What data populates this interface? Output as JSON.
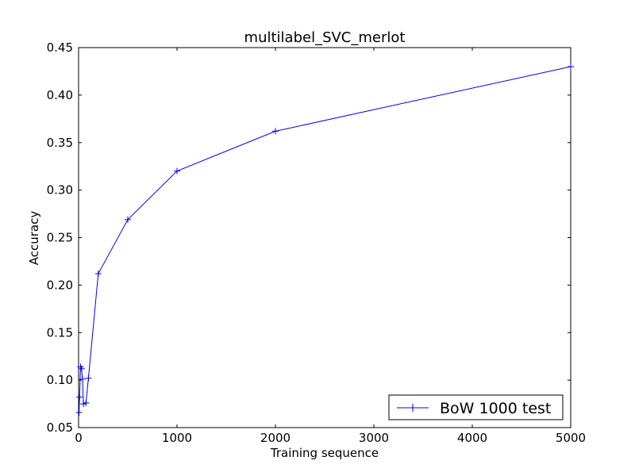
{
  "chart_data": {
    "type": "line",
    "title": "multilabel_SVC_merlot",
    "xlabel": "Training sequence",
    "ylabel": "Accuracy",
    "xlim": [
      0,
      5000
    ],
    "ylim": [
      0.05,
      0.45
    ],
    "xticks": [
      "0",
      "1000",
      "2000",
      "3000",
      "4000",
      "5000"
    ],
    "yticks": [
      "0.05",
      "0.10",
      "0.15",
      "0.20",
      "0.25",
      "0.30",
      "0.35",
      "0.40",
      "0.45"
    ],
    "grid": false,
    "legend_position": "bottom-right",
    "series": [
      {
        "name": "BoW 1000 test",
        "color": "#0000ff",
        "marker": "plus",
        "x": [
          5,
          10,
          20,
          30,
          40,
          50,
          75,
          100,
          200,
          500,
          1000,
          2000,
          5000
        ],
        "y": [
          0.066,
          0.082,
          0.114,
          0.112,
          0.101,
          0.075,
          0.076,
          0.102,
          0.212,
          0.269,
          0.32,
          0.362,
          0.43
        ]
      }
    ]
  }
}
